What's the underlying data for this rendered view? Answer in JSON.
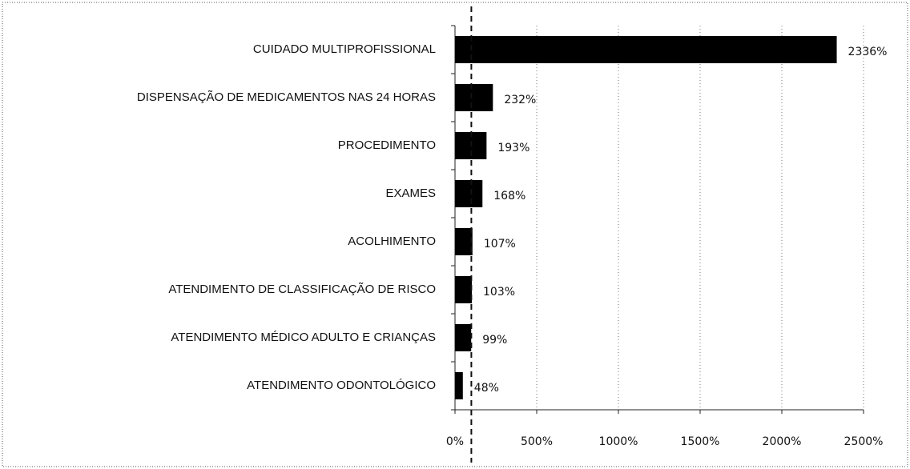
{
  "chart_data": {
    "type": "bar",
    "orientation": "horizontal",
    "categories": [
      "CUIDADO MULTIPROFISSIONAL",
      "DISPENSAÇÃO DE MEDICAMENTOS  NAS 24 HORAS",
      "PROCEDIMENTO",
      "EXAMES",
      "ACOLHIMENTO",
      "ATENDIMENTO  DE CLASSIFICAÇÃO DE RISCO",
      "ATENDIMENTO  MÉDICO ADULTO E CRIANÇAS",
      "ATENDIMENTO  ODONTOLÓGICO"
    ],
    "values": [
      2336,
      232,
      193,
      168,
      107,
      103,
      99,
      48
    ],
    "value_labels": [
      "2336%",
      "232%",
      "193%",
      "168%",
      "107%",
      "103%",
      "99%",
      "48%"
    ],
    "color": "#000000",
    "xlim": [
      0,
      2500
    ],
    "xticks": [
      {
        "value": 0,
        "label": "0%"
      },
      {
        "value": 500,
        "label": "500%"
      },
      {
        "value": 1000,
        "label": "1000%"
      },
      {
        "value": 1500,
        "label": "1500%"
      },
      {
        "value": 2000,
        "label": "2000%"
      },
      {
        "value": 2500,
        "label": "2500%"
      }
    ],
    "grid": true,
    "reference_line": 100
  }
}
